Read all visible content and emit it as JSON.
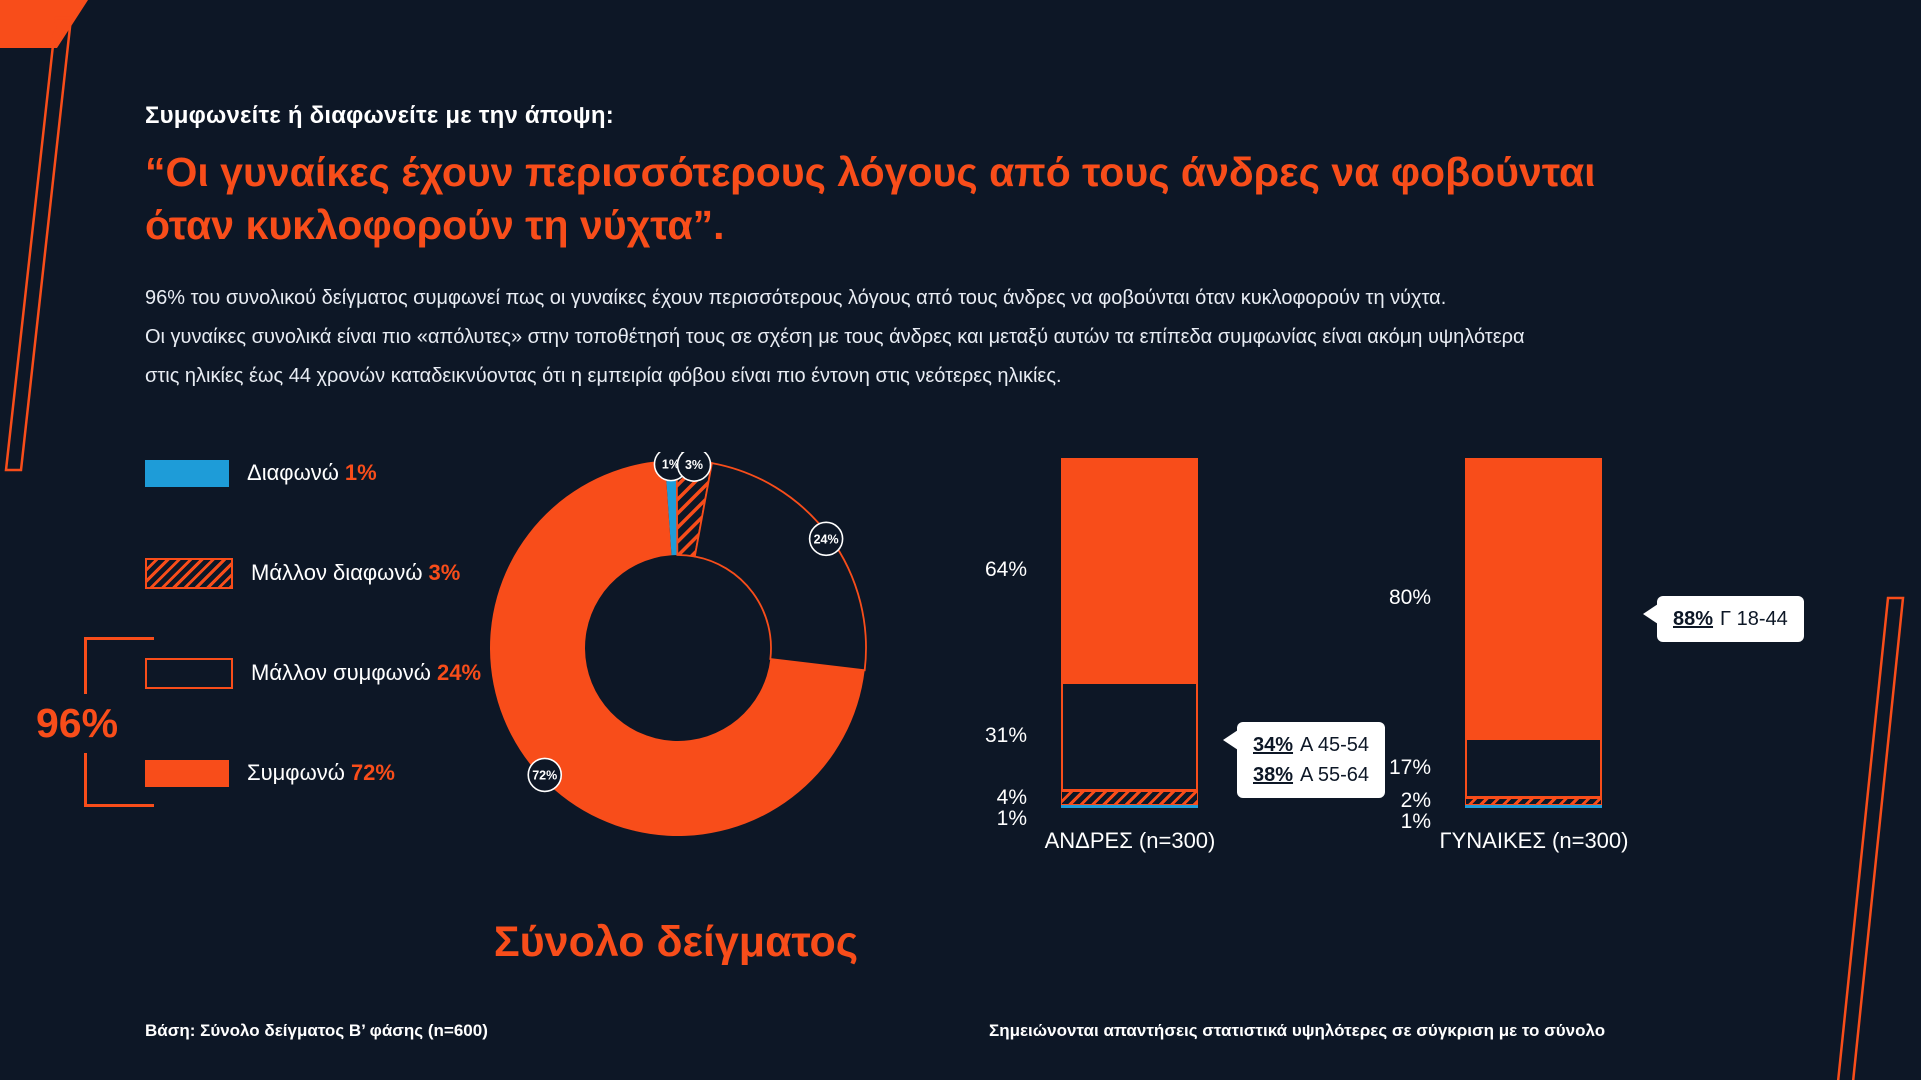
{
  "header": {
    "question_label": "Συμφωνείτε ή διαφωνείτε με την άποψη:",
    "title_lines": [
      "“Οι γυναίκες έχουν περισσότερους λόγους από τους άνδρες να φοβούνται",
      "όταν κυκλοφορούν τη νύχτα”."
    ],
    "paragraph_lines": [
      "96% του συνολικού δείγματος συμφωνεί πως οι γυναίκες έχουν περισσότερους λόγους από τους άνδρες να φοβούνται όταν κυκλοφορούν τη νύχτα.",
      "Οι γυναίκες συνολικά είναι πιο «απόλυτες» στην τοποθέτησή τους σε σχέση με τους άνδρες και μεταξύ αυτών τα επίπεδα συμφωνίας είναι ακόμη υψηλότερα",
      "στις ηλικίες έως 44 χρονών καταδεικνύοντας ότι η εμπειρία φόβου είναι πιο έντονη στις νεότερες ηλικίες."
    ]
  },
  "legend": {
    "items": [
      {
        "label": "Διαφωνώ",
        "pct": "1%",
        "style": "blue"
      },
      {
        "label": "Μάλλον διαφωνώ",
        "pct": "3%",
        "style": "hatched"
      },
      {
        "label": "Μάλλον συμφωνώ",
        "pct": "24%",
        "style": "outlined"
      },
      {
        "label": "Συμφωνώ",
        "pct": "72%",
        "style": "solid"
      }
    ],
    "agree_total": "96%"
  },
  "chart_data": {
    "type": "donut+stacked-bar",
    "categories": [
      "Διαφωνώ",
      "Μάλλον διαφωνώ",
      "Μάλλον συμφωνώ",
      "Συμφωνώ"
    ],
    "styles": [
      "blue",
      "hatched",
      "outlined",
      "solid"
    ],
    "donut": {
      "caption": "Σύνολο δείγματος",
      "values": [
        1,
        3,
        24,
        72
      ],
      "labels": [
        "1%",
        "3%",
        "24%",
        "72%"
      ]
    },
    "bars": [
      {
        "name": "ΑΝΔΡΕΣ (n=300)",
        "values": [
          1,
          4,
          31,
          64
        ],
        "labels": [
          "1%",
          "4%",
          "31%",
          "64%"
        ],
        "callout": {
          "lines": [
            {
              "value": "34%",
              "text": "Α 45-54"
            },
            {
              "value": "38%",
              "text": "Α 55-64"
            }
          ]
        }
      },
      {
        "name": "ΓΥΝΑΙΚΕΣ (n=300)",
        "values": [
          1,
          2,
          17,
          80
        ],
        "labels": [
          "1%",
          "2%",
          "17%",
          "80%"
        ],
        "callout": {
          "lines": [
            {
              "value": "88%",
              "text": "Γ 18-44"
            }
          ]
        }
      }
    ],
    "colors": {
      "orange": "#F84D1A",
      "blue": "#1E9CD8",
      "background": "#0D1726"
    }
  },
  "footer": {
    "left": "Βάση: Σύνολο δείγματος Β’ φάσης (n=600)",
    "right": "Σημειώνονται απαντήσεις στατιστικά υψηλότερες σε σύγκριση με το σύνολο"
  }
}
